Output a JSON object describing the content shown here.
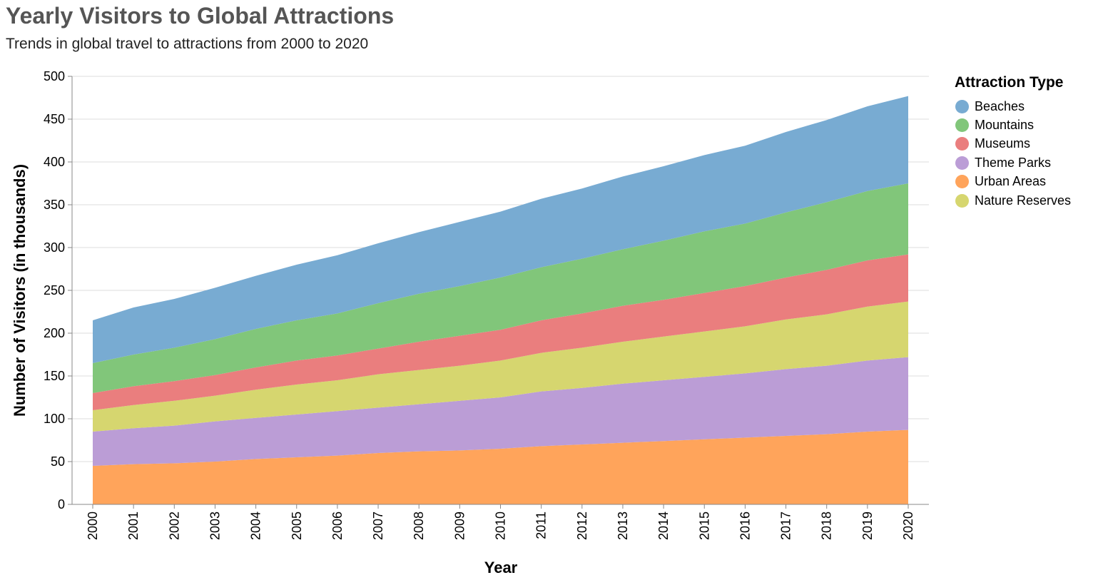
{
  "title": "Yearly Visitors to Global Attractions",
  "subtitle": "Trends in global travel to attractions from 2000 to 2020",
  "chart_data": {
    "type": "area",
    "stacked": true,
    "x": [
      2000,
      2001,
      2002,
      2003,
      2004,
      2005,
      2006,
      2007,
      2008,
      2009,
      2010,
      2011,
      2012,
      2013,
      2014,
      2015,
      2016,
      2017,
      2018,
      2019,
      2020
    ],
    "series": [
      {
        "name": "Urban Areas",
        "color": "#ffa45b",
        "values": [
          45,
          47,
          48,
          50,
          53,
          55,
          57,
          60,
          62,
          63,
          65,
          68,
          70,
          72,
          74,
          76,
          78,
          80,
          82,
          85,
          87
        ]
      },
      {
        "name": "Theme Parks",
        "color": "#bb9dd6",
        "values": [
          40,
          42,
          44,
          47,
          48,
          50,
          52,
          53,
          55,
          58,
          60,
          64,
          66,
          69,
          71,
          73,
          75,
          78,
          80,
          83,
          85
        ]
      },
      {
        "name": "Nature Reserves",
        "color": "#d6d66f",
        "values": [
          25,
          27,
          29,
          30,
          33,
          35,
          36,
          39,
          40,
          41,
          43,
          45,
          47,
          49,
          51,
          53,
          55,
          58,
          60,
          63,
          65
        ]
      },
      {
        "name": "Museums",
        "color": "#ea7e7e",
        "values": [
          20,
          22,
          23,
          24,
          26,
          28,
          29,
          30,
          33,
          35,
          36,
          38,
          40,
          42,
          43,
          45,
          47,
          49,
          52,
          54,
          55
        ]
      },
      {
        "name": "Mountains",
        "color": "#81c67a",
        "values": [
          35,
          37,
          39,
          42,
          45,
          47,
          49,
          53,
          56,
          58,
          61,
          62,
          64,
          66,
          69,
          72,
          73,
          76,
          79,
          81,
          83
        ]
      },
      {
        "name": "Beaches",
        "color": "#78abd2",
        "values": [
          50,
          55,
          57,
          60,
          62,
          65,
          68,
          70,
          72,
          75,
          77,
          80,
          82,
          85,
          87,
          89,
          91,
          94,
          96,
          99,
          102
        ]
      }
    ],
    "xlabel": "Year",
    "ylabel": "Number of Visitors (in thousands)",
    "ylim": [
      0,
      500
    ],
    "yticks": [
      0,
      50,
      100,
      150,
      200,
      250,
      300,
      350,
      400,
      450,
      500
    ],
    "grid": true,
    "legend": {
      "title": "Attraction Type",
      "position": "right",
      "items": [
        {
          "label": "Beaches",
          "color": "#78abd2"
        },
        {
          "label": "Mountains",
          "color": "#81c67a"
        },
        {
          "label": "Museums",
          "color": "#ea7e7e"
        },
        {
          "label": "Theme Parks",
          "color": "#bb9dd6"
        },
        {
          "label": "Urban Areas",
          "color": "#ffa45b"
        },
        {
          "label": "Nature Reserves",
          "color": "#d6d66f"
        }
      ]
    }
  }
}
